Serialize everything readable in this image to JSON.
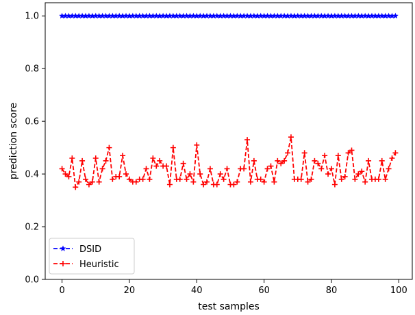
{
  "chart_data": {
    "type": "line",
    "xlabel": "test samples",
    "ylabel": "prediction score",
    "xlim": [
      -5,
      104
    ],
    "ylim": [
      0.0,
      1.05
    ],
    "xticks": [
      0,
      20,
      40,
      60,
      80,
      100
    ],
    "yticks": [
      0.0,
      0.2,
      0.4,
      0.6,
      0.8,
      1.0
    ],
    "xtick_labels": [
      "0",
      "20",
      "40",
      "60",
      "80",
      "100"
    ],
    "ytick_labels": [
      "0.0",
      "0.2",
      "0.4",
      "0.6",
      "0.8",
      "1.0"
    ],
    "grid": false,
    "legend_position": "lower-left",
    "x": [
      0,
      1,
      2,
      3,
      4,
      5,
      6,
      7,
      8,
      9,
      10,
      11,
      12,
      13,
      14,
      15,
      16,
      17,
      18,
      19,
      20,
      21,
      22,
      23,
      24,
      25,
      26,
      27,
      28,
      29,
      30,
      31,
      32,
      33,
      34,
      35,
      36,
      37,
      38,
      39,
      40,
      41,
      42,
      43,
      44,
      45,
      46,
      47,
      48,
      49,
      50,
      51,
      52,
      53,
      54,
      55,
      56,
      57,
      58,
      59,
      60,
      61,
      62,
      63,
      64,
      65,
      66,
      67,
      68,
      69,
      70,
      71,
      72,
      73,
      74,
      75,
      76,
      77,
      78,
      79,
      80,
      81,
      82,
      83,
      84,
      85,
      86,
      87,
      88,
      89,
      90,
      91,
      92,
      93,
      94,
      95,
      96,
      97,
      98,
      99
    ],
    "series": [
      {
        "name": "DSID",
        "color": "#0000ff",
        "marker": "star",
        "values": [
          1,
          1,
          1,
          1,
          1,
          1,
          1,
          1,
          1,
          1,
          1,
          1,
          1,
          1,
          1,
          1,
          1,
          1,
          1,
          1,
          1,
          1,
          1,
          1,
          1,
          1,
          1,
          1,
          1,
          1,
          1,
          1,
          1,
          1,
          1,
          1,
          1,
          1,
          1,
          1,
          1,
          1,
          1,
          1,
          1,
          1,
          1,
          1,
          1,
          1,
          1,
          1,
          1,
          1,
          1,
          1,
          1,
          1,
          1,
          1,
          1,
          1,
          1,
          1,
          1,
          1,
          1,
          1,
          1,
          1,
          1,
          1,
          1,
          1,
          1,
          1,
          1,
          1,
          1,
          1,
          1,
          1,
          1,
          1,
          1,
          1,
          1,
          1,
          1,
          1,
          1,
          1,
          1,
          1,
          1,
          1,
          1,
          1,
          1,
          1
        ]
      },
      {
        "name": "Heuristic",
        "color": "#ff0000",
        "marker": "plus",
        "values": [
          0.42,
          0.4,
          0.39,
          0.46,
          0.35,
          0.37,
          0.45,
          0.38,
          0.36,
          0.37,
          0.46,
          0.37,
          0.42,
          0.45,
          0.5,
          0.38,
          0.39,
          0.39,
          0.47,
          0.4,
          0.38,
          0.37,
          0.37,
          0.38,
          0.38,
          0.42,
          0.38,
          0.46,
          0.43,
          0.45,
          0.43,
          0.43,
          0.36,
          0.5,
          0.38,
          0.38,
          0.44,
          0.38,
          0.4,
          0.37,
          0.51,
          0.4,
          0.36,
          0.37,
          0.42,
          0.36,
          0.36,
          0.4,
          0.38,
          0.42,
          0.36,
          0.36,
          0.37,
          0.42,
          0.42,
          0.53,
          0.37,
          0.45,
          0.38,
          0.38,
          0.37,
          0.42,
          0.43,
          0.37,
          0.45,
          0.44,
          0.45,
          0.48,
          0.54,
          0.38,
          0.38,
          0.38,
          0.48,
          0.37,
          0.38,
          0.45,
          0.44,
          0.42,
          0.47,
          0.4,
          0.42,
          0.36,
          0.47,
          0.38,
          0.39,
          0.48,
          0.49,
          0.38,
          0.4,
          0.41,
          0.37,
          0.45,
          0.38,
          0.38,
          0.38,
          0.45,
          0.38,
          0.42,
          0.46,
          0.48
        ]
      }
    ]
  }
}
